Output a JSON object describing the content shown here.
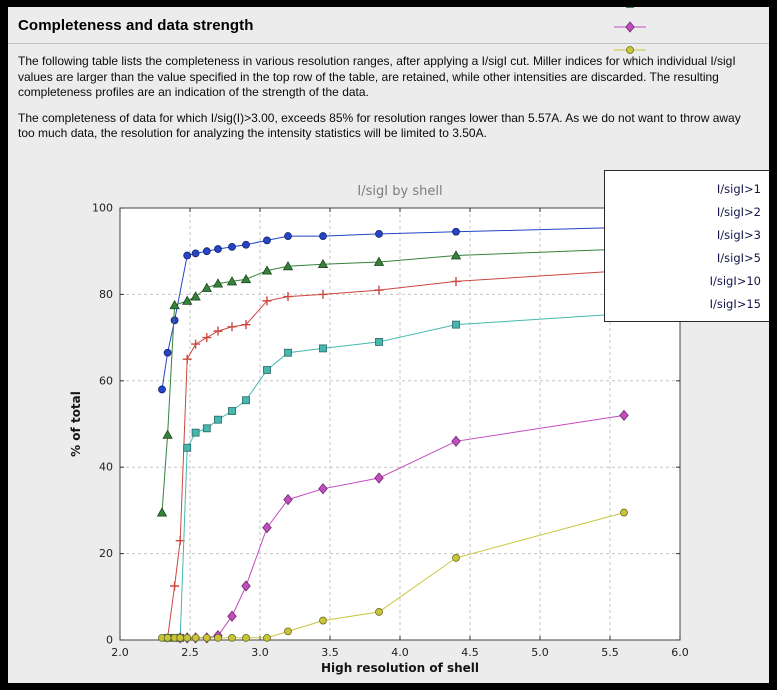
{
  "header": {
    "title": "Completeness and data strength"
  },
  "body": {
    "paragraph1": "The following table lists the completeness in various resolution ranges, after applying a I/sigI cut. Miller indices for which individual I/sigI values are larger than the value specified in the top row of the table, are retained, while other intensities are discarded. The resulting completeness profiles are an indication of the strength of the data.",
    "paragraph2": "The completeness of data for which I/sig(I)>3.00, exceeds  85% for resolution ranges lower than 5.57A. As we do not want to throw away too much data, the resolution for analyzing the intensity statistics will be limited to 3.50A."
  },
  "colors": {
    "frame": "#000000",
    "panel_bg": "#ececec",
    "plot_bg": "#ffffff",
    "grid": "#c6c6c6",
    "chart_title_gray": "#7d7d7d"
  },
  "chart_data": {
    "type": "line",
    "title": "I/sigI by shell",
    "xlabel": "High resolution of shell",
    "ylabel": "% of total",
    "xlim": [
      2.0,
      6.0
    ],
    "ylim": [
      0,
      100
    ],
    "xticks": [
      2.0,
      2.5,
      3.0,
      3.5,
      4.0,
      4.5,
      5.0,
      5.5,
      6.0
    ],
    "yticks": [
      0,
      20,
      40,
      60,
      80,
      100
    ],
    "grid": "dashed",
    "legend_position": "upper right",
    "x": [
      2.3,
      2.34,
      2.39,
      2.43,
      2.48,
      2.54,
      2.62,
      2.7,
      2.8,
      2.9,
      3.05,
      3.2,
      3.45,
      3.85,
      4.4,
      5.6
    ],
    "series": [
      {
        "name": "I/sigI>1",
        "color": "#2544c7",
        "marker": "circle",
        "values": [
          58,
          66.5,
          74,
          null,
          89,
          89.5,
          90,
          90.5,
          91,
          91.5,
          92.5,
          93.5,
          93.5,
          94,
          94.5,
          95.5
        ]
      },
      {
        "name": "I/sigI>2",
        "color": "#35823a",
        "marker": "triangle",
        "values": [
          29.5,
          47.5,
          77.5,
          null,
          78.5,
          79.5,
          81.5,
          82.5,
          83,
          83.5,
          85.5,
          86.5,
          87,
          87.5,
          89,
          90.5
        ]
      },
      {
        "name": "I/sigI>3",
        "color": "#cc473f",
        "marker": "plus",
        "values": [
          null,
          0.5,
          12.5,
          23,
          65,
          68.5,
          70,
          71.5,
          72.5,
          73,
          78.5,
          79.5,
          80,
          81,
          83,
          85.5
        ]
      },
      {
        "name": "I/sigI>5",
        "color": "#46b8b0",
        "marker": "square",
        "values": [
          null,
          0.5,
          0.5,
          0.5,
          44.5,
          48,
          49,
          51,
          53,
          55.5,
          62.5,
          66.5,
          67.5,
          69,
          73,
          75.5
        ]
      },
      {
        "name": "I/sigI>10",
        "color": "#c24cc0",
        "marker": "diamond",
        "values": [
          null,
          null,
          null,
          0.5,
          0.5,
          0.5,
          0.5,
          1,
          5.5,
          12.5,
          26,
          32.5,
          35,
          37.5,
          46,
          52
        ]
      },
      {
        "name": "I/sigI>15",
        "color": "#c9c53b",
        "marker": "circle",
        "values": [
          0.5,
          0.5,
          0.5,
          0.5,
          0.5,
          0.5,
          0.5,
          0.5,
          0.5,
          0.5,
          0.5,
          2,
          4.5,
          6.5,
          19,
          29.5
        ]
      }
    ]
  }
}
